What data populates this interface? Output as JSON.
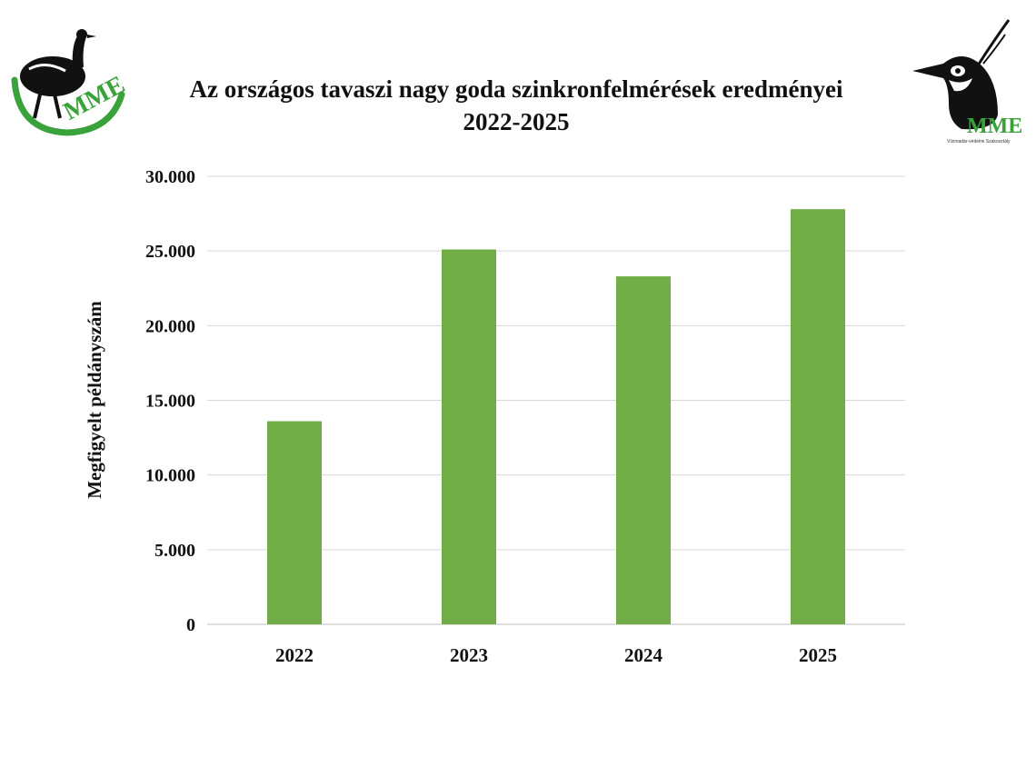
{
  "logos": {
    "left_text": "MME",
    "right_text": "MME",
    "right_subtitle": "Vízimadár-védelmi Szakosztály"
  },
  "colors": {
    "bar": "#70ad47",
    "logo_green": "#3aa23a",
    "grid": "#d9d9d9"
  },
  "chart_data": {
    "type": "bar",
    "title": "Az országos tavaszi nagy goda szinkronfelmérések eredményei",
    "subtitle": "2022-2025",
    "xlabel": "",
    "ylabel": "Megfigyelt példányszám",
    "categories": [
      "2022",
      "2023",
      "2024",
      "2025"
    ],
    "values": [
      13600,
      25100,
      23300,
      27800
    ],
    "ylim": [
      0,
      30000
    ],
    "yticks": [
      0,
      5000,
      10000,
      15000,
      20000,
      25000,
      30000
    ],
    "ytick_labels": [
      "0",
      "5.000",
      "10.000",
      "15.000",
      "20.000",
      "25.000",
      "30.000"
    ],
    "grid": true,
    "legend": "none"
  }
}
